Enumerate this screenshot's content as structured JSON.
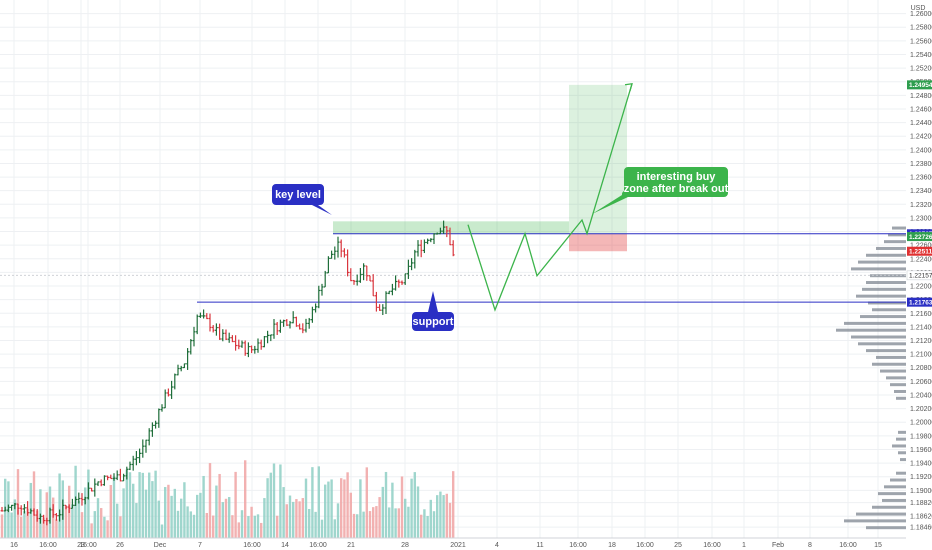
{
  "chart_data": {
    "type": "bar",
    "subtype": "ohlc_price_chart",
    "currency_label": "USD",
    "y_axis": {
      "range": [
        1.183,
        1.262
      ],
      "tick_labels": [
        "1.18460",
        "1.18620",
        "1.18820",
        "1.19000",
        "1.19200",
        "1.19400",
        "1.19600",
        "1.19800",
        "1.20000",
        "1.20200",
        "1.20400",
        "1.20600",
        "1.20800",
        "1.21000",
        "1.21200",
        "1.21400",
        "1.21600",
        "1.21800",
        "1.22000",
        "1.22200",
        "1.22400",
        "1.22600",
        "1.22800",
        "1.23000",
        "1.23200",
        "1.23400",
        "1.23600",
        "1.23800",
        "1.24000",
        "1.24200",
        "1.24400",
        "1.24600",
        "1.24800",
        "1.25000",
        "1.25200",
        "1.25400",
        "1.25600",
        "1.25800",
        "1.26000"
      ],
      "side": "right"
    },
    "x_axis": {
      "tick_labels": [
        "16",
        "16:00",
        "23",
        "16:00",
        "26",
        "Dec",
        "7",
        "16:00",
        "14",
        "16:00",
        "21",
        "28",
        "2021",
        "4",
        "11",
        "16:00",
        "18",
        "16:00",
        "25",
        "16:00",
        "1",
        "Feb",
        "8",
        "16:00",
        "15"
      ]
    },
    "price_badges": [
      {
        "label": "1.24954",
        "value": 1.24954,
        "color": "#2e9e4e"
      },
      {
        "label": "1.22767",
        "value": 1.22767,
        "color": "#2a2fc4"
      },
      {
        "label": "1.22726",
        "value": 1.22726,
        "color": "#2e9e4e"
      },
      {
        "label": "1.22511",
        "value": 1.22511,
        "color": "#e03131"
      },
      {
        "label": "1.22157",
        "value": 1.22157,
        "color": "#ffffff"
      },
      {
        "label": "1.21763",
        "value": 1.21763,
        "color": "#2a2fc4"
      }
    ],
    "horizontal_levels": [
      {
        "value": 1.22767,
        "color": "#2a2fc4"
      },
      {
        "value": 1.21763,
        "color": "#2a2fc4"
      }
    ],
    "annotations": [
      {
        "text": "key level",
        "color": "#2a2fc4"
      },
      {
        "text": "support",
        "color": "#2a2fc4"
      },
      {
        "text": "interesting buy zone after break out",
        "lines": [
          "interesting buy",
          "zone after break out"
        ],
        "color": "#3cb44b"
      }
    ],
    "zones": [
      {
        "name": "key-level-zone",
        "y_range": [
          1.22767,
          1.2295
        ],
        "color": "#3cb44b"
      },
      {
        "name": "target-zone",
        "y_range": [
          1.22767,
          1.24954
        ],
        "color": "#3cb44b"
      },
      {
        "name": "stop-zone",
        "y_range": [
          1.22511,
          1.22767
        ],
        "color": "#e03131"
      }
    ],
    "projected_path": {
      "color": "#3cb44b",
      "points": [
        [
          468,
          1.229
        ],
        [
          495,
          1.2165
        ],
        [
          525,
          1.2277
        ],
        [
          537,
          1.2215
        ],
        [
          582,
          1.2297
        ],
        [
          587,
          1.2277
        ],
        [
          632,
          1.2497
        ]
      ]
    },
    "grid": true,
    "colors": {
      "up": "#1f6e3a",
      "down": "#d9363e",
      "vol_up": "#8ecfc4",
      "vol_down": "#f0a3a3",
      "grid": "#eef0f3"
    }
  }
}
